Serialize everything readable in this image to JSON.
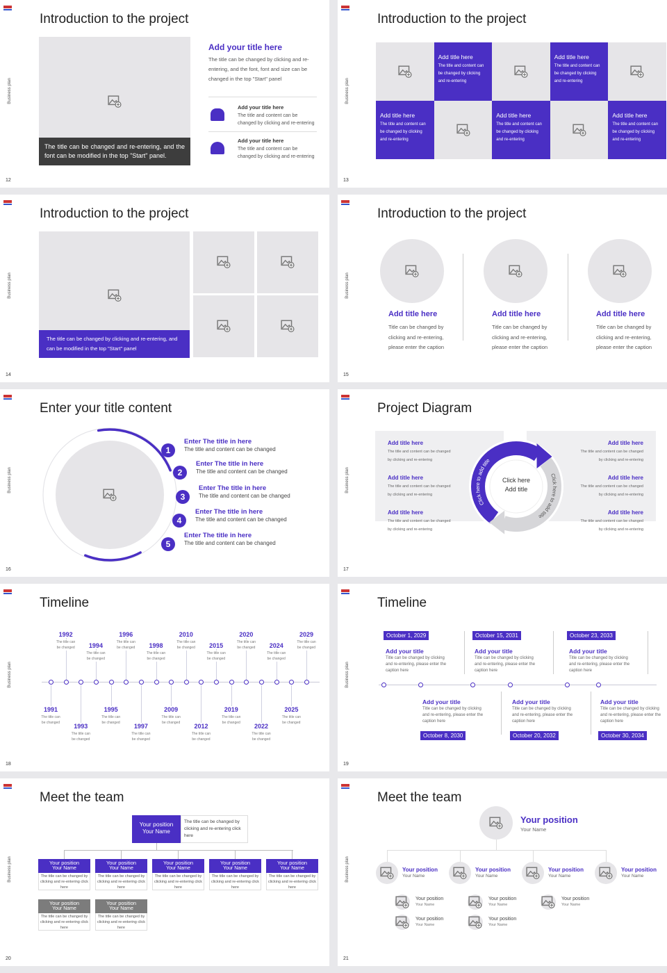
{
  "side_label": "Business plan",
  "slides": [
    {
      "page": "12",
      "title": "Introduction to the project",
      "caption": "The title can be changed and re-entering, and the font can be modified in the top \"Start\" panel.",
      "heading": "Add your title here",
      "body": "The title can be changed by clicking and re-entering, and the font, font and size can be changed in the top \"Start\" panel",
      "items": [
        {
          "title": "Add your title here",
          "text": "The title and content can be changed by clicking and re-entering"
        },
        {
          "title": "Add your title here",
          "text": "The title and content can be changed by clicking and re-entering"
        }
      ]
    },
    {
      "page": "13",
      "title": "Introduction to the project",
      "cells": [
        {
          "title": "Add title here",
          "text": "The title and content can be changed by clicking and re-entering"
        },
        {
          "title": "Add title here",
          "text": "The title and content can be changed by clicking and re-entering"
        },
        {
          "title": "Add title here",
          "text": "The title and content can be changed by clicking and re-entering"
        },
        {
          "title": "Add title here",
          "text": "The title and content can be changed by clicking and re-entering"
        },
        {
          "title": "Add title here",
          "text": "The title and content can be changed by clicking and re-entering"
        }
      ]
    },
    {
      "page": "14",
      "title": "Introduction to the project",
      "caption": "The title can be changed by clicking and re-entering, and can be modified in the top \"Start\" panel"
    },
    {
      "page": "15",
      "title": "Introduction to the project",
      "items": [
        {
          "title": "Add title here",
          "text": "Title can be changed by clicking and re-entering, please enter the caption"
        },
        {
          "title": "Add title here",
          "text": "Title can be changed by clicking and re-entering, please enter the caption"
        },
        {
          "title": "Add title here",
          "text": "Title can be changed by clicking and re-entering, please enter the caption"
        }
      ]
    },
    {
      "page": "16",
      "title": "Enter your title content",
      "items": [
        {
          "number": "1",
          "title": "Enter The title in here",
          "text": "The title and content can be changed"
        },
        {
          "number": "2",
          "title": "Enter The title in here",
          "text": "The title and content can be changed"
        },
        {
          "number": "3",
          "title": "Enter The title in here",
          "text": "The title and content can be changed"
        },
        {
          "number": "4",
          "title": "Enter The title in here",
          "text": "The title and content can be changed"
        },
        {
          "number": "5",
          "title": "Enter The title in here",
          "text": "The title and content can be changed"
        }
      ]
    },
    {
      "page": "17",
      "title": "Project Diagram",
      "center": [
        "Click here",
        "Add title"
      ],
      "arcs": [
        "Click here to add title",
        "Click here to add title"
      ],
      "items": [
        {
          "title": "Add title here",
          "text": "The title and content can be changed by clicking and re-entering"
        },
        {
          "title": "Add title here",
          "text": "The title and content can be changed by clicking and re-entering"
        },
        {
          "title": "Add title here",
          "text": "The title and content can be changed by clicking and re-entering"
        },
        {
          "title": "Add title here",
          "text": "The title and content can be changed by clicking and re-entering"
        },
        {
          "title": "Add title here",
          "text": "The title and content can be changed by clicking and re-entering"
        },
        {
          "title": "Add title here",
          "text": "The title and content can be changed by clicking and re-entering"
        }
      ]
    },
    {
      "page": "18",
      "title": "Timeline",
      "events": [
        {
          "year": "1991",
          "text": "The title can be changed"
        },
        {
          "year": "1992",
          "text": "The title can be changed"
        },
        {
          "year": "1993",
          "text": "The title can be changed"
        },
        {
          "year": "1994",
          "text": "The title can be changed"
        },
        {
          "year": "1995",
          "text": "The title can be changed"
        },
        {
          "year": "1996",
          "text": "The title can be changed"
        },
        {
          "year": "1997",
          "text": "The title can be changed"
        },
        {
          "year": "1998",
          "text": "The title can be changed"
        },
        {
          "year": "2009",
          "text": "The title can be changed"
        },
        {
          "year": "2010",
          "text": "The title can be changed"
        },
        {
          "year": "2012",
          "text": "The title can be changed"
        },
        {
          "year": "2015",
          "text": "The title can be changed"
        },
        {
          "year": "2019",
          "text": "The title can be changed"
        },
        {
          "year": "2020",
          "text": "The title can be changed"
        },
        {
          "year": "2022",
          "text": "The title can be changed"
        },
        {
          "year": "2024",
          "text": "The title can be changed"
        },
        {
          "year": "2025",
          "text": "The title can be changed"
        },
        {
          "year": "2029",
          "text": "The title can be changed"
        }
      ]
    },
    {
      "page": "19",
      "title": "Timeline",
      "events": [
        {
          "date": "October 1, 2029",
          "title": "Add your title",
          "text": "Title can be changed by clicking and re-entering, please enter the caption here"
        },
        {
          "date": "October 8, 2030",
          "title": "Add your title",
          "text": "Title can be changed by clicking and re-entering, please enter the caption here"
        },
        {
          "date": "October 15, 2031",
          "title": "Add your title",
          "text": "Title can be changed by clicking and re-entering, please enter the caption here"
        },
        {
          "date": "October 20, 2032",
          "title": "Add your title",
          "text": "Title can be changed by clicking and re-entering, please enter the caption here"
        },
        {
          "date": "October 23, 2033",
          "title": "Add your title",
          "text": "Title can be changed by clicking and re-entering, please enter the caption here"
        },
        {
          "date": "October 30, 2034",
          "title": "Add your title",
          "text": "Title can be changed by clicking and re-entering, please enter the caption here"
        }
      ]
    },
    {
      "page": "20",
      "title": "Meet the team",
      "lead": {
        "position": "Your position",
        "name": "Your Name",
        "text": "The title can be changed by clicking and re-entering click here"
      },
      "members": [
        {
          "position": "Your position",
          "name": "Your Name",
          "text": "The title can be changed by clicking and re-entering click here"
        },
        {
          "position": "Your position",
          "name": "Your Name",
          "text": "The title can be changed by clicking and re-entering click here"
        },
        {
          "position": "Your position",
          "name": "Your Name",
          "text": "The title can be changed by clicking and re-entering click here"
        },
        {
          "position": "Your position",
          "name": "Your Name",
          "text": "The title can be changed by clicking and re-entering click here"
        },
        {
          "position": "Your position",
          "name": "Your Name",
          "text": "The title can be changed by clicking and re-entering click here"
        },
        {
          "position": "Your position",
          "name": "Your Name",
          "text": "The title can be changed by clicking and re-entering click here"
        },
        {
          "position": "Your position",
          "name": "Your Name",
          "text": "The title can be changed by clicking and re-entering click here"
        }
      ]
    },
    {
      "page": "21",
      "title": "Meet the team",
      "lead": {
        "position": "Your position",
        "name": "Your Name"
      },
      "members": [
        {
          "position": "Your position",
          "name": "Your Name"
        },
        {
          "position": "Your position",
          "name": "Your Name"
        },
        {
          "position": "Your position",
          "name": "Your Name"
        },
        {
          "position": "Your position",
          "name": "Your Name"
        }
      ],
      "staff": [
        {
          "position": "Your position",
          "name": "Your Name"
        },
        {
          "position": "Your position",
          "name": "Your Name"
        },
        {
          "position": "Your position",
          "name": "Your Name"
        },
        {
          "position": "Your position",
          "name": "Your Name"
        },
        {
          "position": "Your position",
          "name": "Your Name"
        }
      ]
    }
  ]
}
